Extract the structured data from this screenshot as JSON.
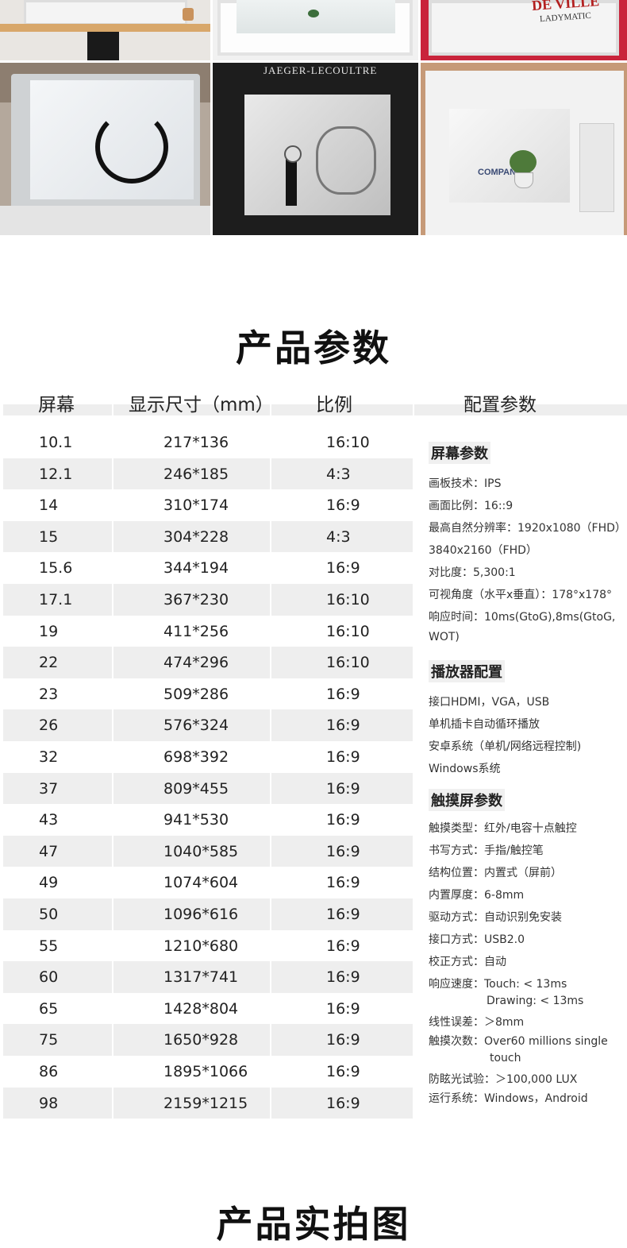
{
  "photos": {
    "brand_deville": "DE VILLE",
    "brand_ladymatic": "LADYMATIC",
    "brand_jaeger": "JAEGER-LECOULTRE",
    "brand_company": "COMPANY"
  },
  "params_title": "产品参数",
  "gallery_title": "产品实拍图",
  "table": {
    "headers": [
      "屏幕",
      "显示尺寸（mm）",
      "比例",
      "配置参数"
    ],
    "rows": [
      [
        "10.1",
        "217*136",
        "16:10"
      ],
      [
        "12.1",
        "246*185",
        "4:3"
      ],
      [
        "14",
        "310*174",
        "16:9"
      ],
      [
        "15",
        "304*228",
        "4:3"
      ],
      [
        "15.6",
        "344*194",
        "16:9"
      ],
      [
        "17.1",
        "367*230",
        "16:10"
      ],
      [
        "19",
        "411*256",
        "16:10"
      ],
      [
        "22",
        "474*296",
        "16:10"
      ],
      [
        "23",
        "509*286",
        "16:9"
      ],
      [
        "26",
        "576*324",
        "16:9"
      ],
      [
        "32",
        "698*392",
        "16:9"
      ],
      [
        "37",
        "809*455",
        "16:9"
      ],
      [
        "43",
        "941*530",
        "16:9"
      ],
      [
        "47",
        "1040*585",
        "16:9"
      ],
      [
        "49",
        "1074*604",
        "16:9"
      ],
      [
        "50",
        "1096*616",
        "16:9"
      ],
      [
        "55",
        "1210*680",
        "16:9"
      ],
      [
        "60",
        "1317*741",
        "16:9"
      ],
      [
        "65",
        "1428*804",
        "16:9"
      ],
      [
        "75",
        "1650*928",
        "16:9"
      ],
      [
        "86",
        "1895*1066",
        "16:9"
      ],
      [
        "98",
        "2159*1215",
        "16:9"
      ]
    ]
  },
  "spec": {
    "screen_title": "屏幕参数",
    "screen": [
      "画板技术：IPS",
      "画面比例：16::9",
      "最高自然分辨率：1920x1080（FHD）",
      "3840x2160（FHD）",
      "对比度：5,300:1",
      "可视角度（水平x垂直）：178°x178°",
      "响应时间：10ms(GtoG),8ms(GtoG,",
      "WOT)"
    ],
    "player_title": "播放器配置",
    "player": [
      "接口HDMI，VGA，USB",
      "单机插卡自动循环播放",
      "安卓系统（单机/网络远程控制)",
      "Windows系统"
    ],
    "touch_title": "触摸屏参数",
    "touch": [
      "触摸类型：红外/电容十点触控",
      "书写方式：手指/触控笔",
      "结构位置：内置式（屏前）",
      "内置厚度：6-8mm",
      "驱动方式：自动识别免安装",
      "接口方式：USB2.0",
      "校正方式：自动",
      "响应速度：Touch: < 13ms",
      "Drawing: < 13ms",
      "线性误差：＞8mm",
      "触摸次数：Over60 millions single",
      "touch",
      "防眩光试验：＞100,000  LUX",
      "运行系统：Windows，Android"
    ]
  }
}
